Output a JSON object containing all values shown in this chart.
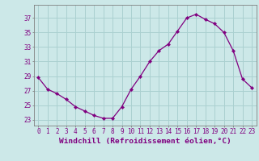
{
  "x": [
    0,
    1,
    2,
    3,
    4,
    5,
    6,
    7,
    8,
    9,
    10,
    11,
    12,
    13,
    14,
    15,
    16,
    17,
    18,
    19,
    20,
    21,
    22,
    23
  ],
  "y": [
    28.8,
    27.2,
    26.6,
    25.8,
    24.8,
    24.2,
    23.6,
    23.2,
    23.2,
    24.8,
    27.2,
    29.0,
    31.0,
    32.5,
    33.4,
    35.2,
    37.0,
    37.5,
    36.8,
    36.2,
    35.0,
    32.5,
    28.6,
    27.4
  ],
  "line_color": "#800080",
  "marker": "D",
  "marker_size": 2.2,
  "bg_color": "#cce8e8",
  "grid_color": "#aad0d0",
  "xlabel": "Windchill (Refroidissement éolien,°C)",
  "yticks": [
    23,
    25,
    27,
    29,
    31,
    33,
    35,
    37
  ],
  "ylim": [
    22.2,
    38.8
  ],
  "xlim": [
    -0.5,
    23.5
  ],
  "tick_color": "#800080",
  "tick_fontsize": 5.5,
  "xlabel_fontsize": 6.8,
  "spine_color": "#808080"
}
